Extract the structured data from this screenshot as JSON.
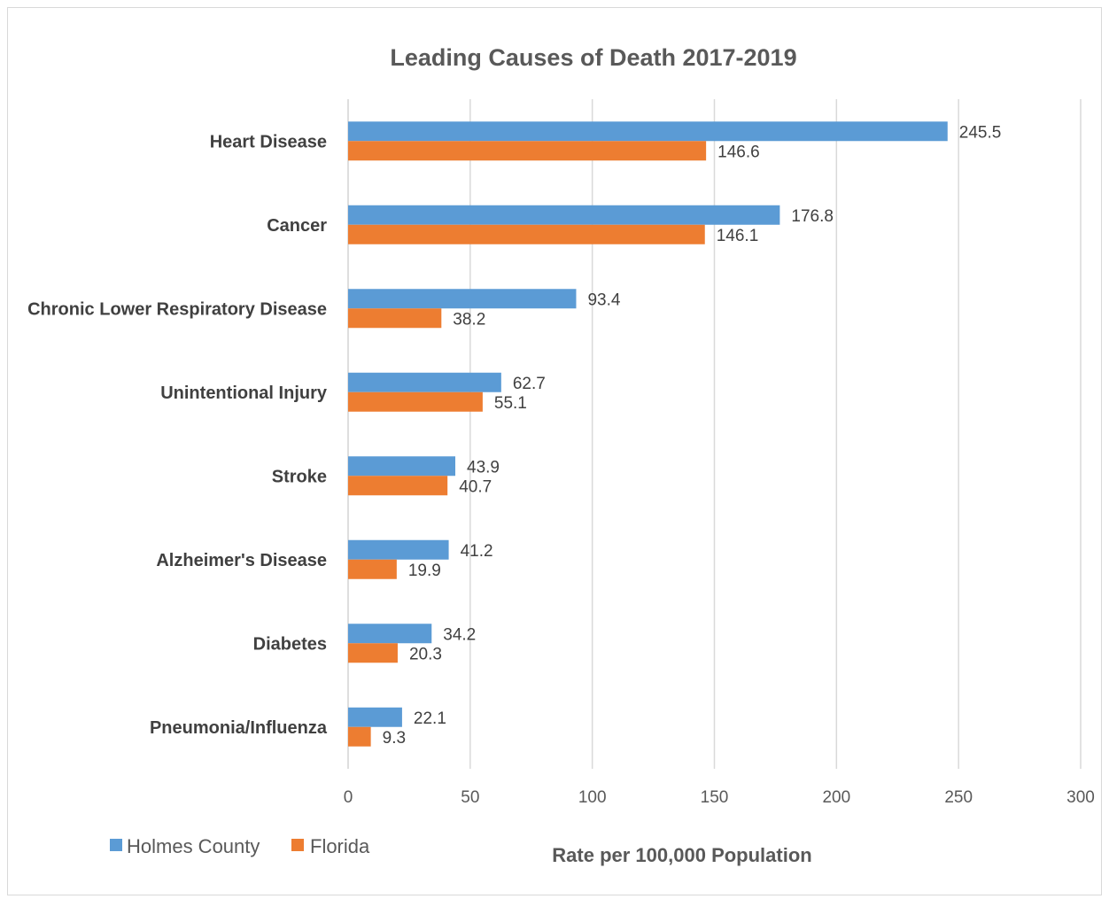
{
  "chart_data": {
    "type": "bar",
    "orientation": "horizontal",
    "title": "Leading Causes of Death 2017-2019",
    "xlabel": "Rate per 100,000 Population",
    "ylabel": "",
    "categories": [
      "Heart Disease",
      "Cancer",
      "Chronic Lower Respiratory Disease",
      "Unintentional Injury",
      "Stroke",
      "Alzheimer's Disease",
      "Diabetes",
      "Pneumonia/Influenza"
    ],
    "series": [
      {
        "name": "Holmes County",
        "color": "#5b9bd5",
        "values": [
          245.5,
          176.8,
          93.4,
          62.7,
          43.9,
          41.2,
          34.2,
          22.1
        ]
      },
      {
        "name": "Florida",
        "color": "#ed7d31",
        "values": [
          146.6,
          146.1,
          38.2,
          55.1,
          40.7,
          19.9,
          20.3,
          9.3
        ]
      }
    ],
    "xlim": [
      0,
      300
    ],
    "xticks": [
      0,
      50,
      100,
      150,
      200,
      250,
      300
    ],
    "grid": "vertical",
    "legend": "bottom-left",
    "data_labels": true
  }
}
